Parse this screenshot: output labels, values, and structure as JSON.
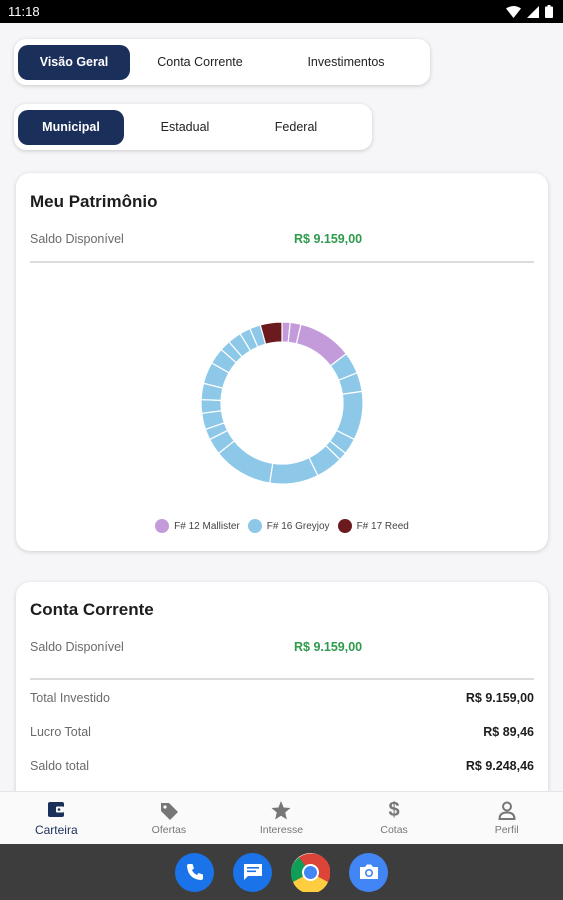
{
  "status_bar": {
    "time": "11:18"
  },
  "tabs_primary": {
    "items": [
      {
        "label": "Visão Geral",
        "active": true
      },
      {
        "label": "Conta Corrente",
        "active": false
      },
      {
        "label": "Investimentos",
        "active": false
      }
    ]
  },
  "tabs_secondary": {
    "items": [
      {
        "label": "Municipal",
        "active": true
      },
      {
        "label": "Estadual",
        "active": false
      },
      {
        "label": "Federal",
        "active": false
      }
    ]
  },
  "patrimonio": {
    "title": "Meu Patrimônio",
    "saldo_label": "Saldo Disponível",
    "saldo_value": "R$ 9.159,00"
  },
  "chart_data": {
    "type": "pie",
    "donut": true,
    "title": "",
    "legend_position": "bottom",
    "series": [
      {
        "name": "F# 12 Mallister",
        "color": "#c39bdb"
      },
      {
        "name": "F# 16 Greyjoy",
        "color": "#8ec8e8"
      },
      {
        "name": "F# 17 Reed",
        "color": "#6b1a1e"
      }
    ],
    "slices": [
      {
        "series": "F# 12 Mallister",
        "value": 1.5
      },
      {
        "series": "F# 12 Mallister",
        "value": 2.0
      },
      {
        "series": "F# 12 Mallister",
        "value": 10.0
      },
      {
        "series": "F# 16 Greyjoy",
        "value": 4.0
      },
      {
        "series": "F# 16 Greyjoy",
        "value": 3.5
      },
      {
        "series": "F# 16 Greyjoy",
        "value": 9.0
      },
      {
        "series": "F# 16 Greyjoy",
        "value": 3.0
      },
      {
        "series": "F# 16 Greyjoy",
        "value": 1.5
      },
      {
        "series": "F# 16 Greyjoy",
        "value": 5.0
      },
      {
        "series": "F# 16 Greyjoy",
        "value": 9.0
      },
      {
        "series": "F# 16 Greyjoy",
        "value": 11.0
      },
      {
        "series": "F# 16 Greyjoy",
        "value": 3.0
      },
      {
        "series": "F# 16 Greyjoy",
        "value": 2.0
      },
      {
        "series": "F# 16 Greyjoy",
        "value": 3.0
      },
      {
        "series": "F# 16 Greyjoy",
        "value": 2.5
      },
      {
        "series": "F# 16 Greyjoy",
        "value": 3.0
      },
      {
        "series": "F# 16 Greyjoy",
        "value": 4.0
      },
      {
        "series": "F# 16 Greyjoy",
        "value": 3.0
      },
      {
        "series": "F# 16 Greyjoy",
        "value": 2.0
      },
      {
        "series": "F# 16 Greyjoy",
        "value": 2.5
      },
      {
        "series": "F# 16 Greyjoy",
        "value": 2.0
      },
      {
        "series": "F# 16 Greyjoy",
        "value": 2.0
      },
      {
        "series": "F# 17 Reed",
        "value": 4.0
      }
    ]
  },
  "conta_corrente": {
    "title": "Conta Corrente",
    "saldo_label": "Saldo Disponível",
    "saldo_value": "R$ 9.159,00",
    "rows": [
      {
        "label": "Total Investido",
        "value": "R$ 9.159,00"
      },
      {
        "label": "Lucro Total",
        "value": "R$ 89,46"
      },
      {
        "label": "Saldo total",
        "value": "R$ 9.248,46"
      }
    ]
  },
  "bottom_nav": {
    "items": [
      {
        "label": "Carteira",
        "icon": "wallet-icon",
        "active": true
      },
      {
        "label": "Ofertas",
        "icon": "tag-icon",
        "active": false
      },
      {
        "label": "Interesse",
        "icon": "star-icon",
        "active": false
      },
      {
        "label": "Cotas",
        "icon": "dollar-icon",
        "active": false
      },
      {
        "label": "Perfil",
        "icon": "person-icon",
        "active": false
      }
    ]
  },
  "dock": {
    "apps": [
      {
        "icon": "phone-app-icon",
        "color": "#1a73e8"
      },
      {
        "icon": "messages-app-icon",
        "color": "#1a73e8"
      },
      {
        "icon": "chrome-app-icon",
        "color": "#ffffff"
      },
      {
        "icon": "camera-app-icon",
        "color": "#4285f4"
      }
    ]
  }
}
